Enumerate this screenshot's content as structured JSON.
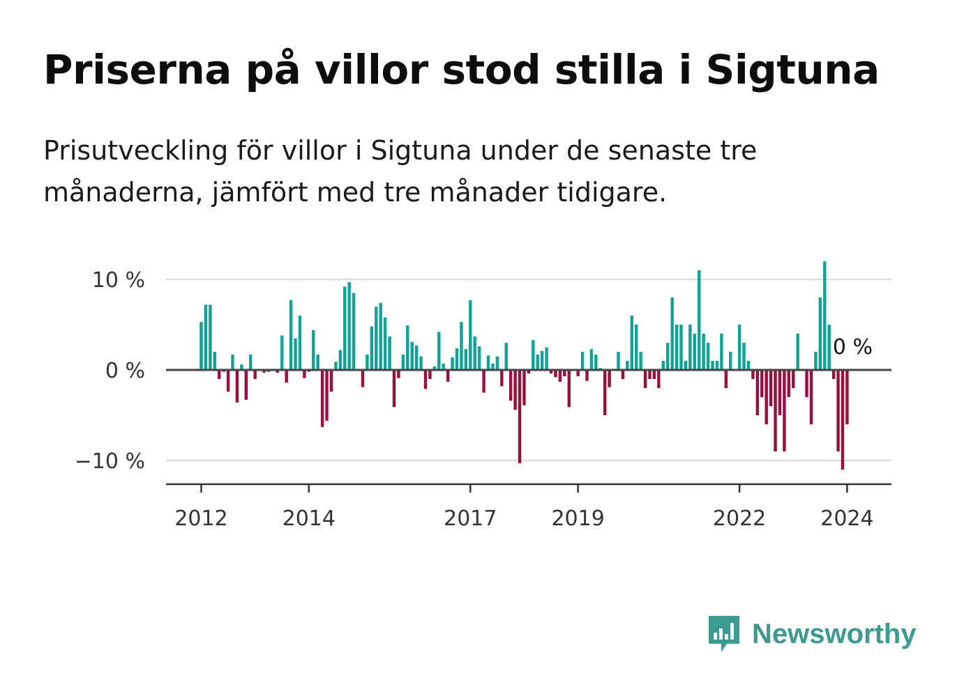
{
  "title": "Priserna på villor stod stilla i Sigtuna",
  "subtitle": "Prisutveckling för villor i Sigtuna under de senaste tre månaderna, jämfört med tre månader tidigare.",
  "brand": {
    "name": "Newsworthy",
    "icon": "newsworthy-chart-bubble-icon",
    "color": "#3d9a90"
  },
  "chart_data": {
    "type": "bar",
    "x_start": "2012-01",
    "x_step": "1 month",
    "ylim": [
      -12.5,
      12.5
    ],
    "yticks": [
      10,
      0,
      -10
    ],
    "ytick_labels": [
      "10 %",
      "0 %",
      "−10 %"
    ],
    "xticks": [
      {
        "label": "2012",
        "date": "2012-01"
      },
      {
        "label": "2014",
        "date": "2014-01"
      },
      {
        "label": "2017",
        "date": "2017-01"
      },
      {
        "label": "2019",
        "date": "2019-01"
      },
      {
        "label": "2022",
        "date": "2022-01"
      },
      {
        "label": "2024",
        "date": "2024-01"
      }
    ],
    "grid": true,
    "colors": {
      "positive": "#0fa398",
      "negative": "#990f3d"
    },
    "last_label": "0 %",
    "values": [
      5.3,
      7.2,
      7.2,
      2.0,
      -1.0,
      -0.2,
      -2.4,
      1.7,
      -3.6,
      0.6,
      -3.3,
      1.7,
      -1.0,
      -0.1,
      -0.3,
      -0.2,
      -0.1,
      -0.3,
      3.8,
      -1.4,
      7.7,
      3.5,
      6.0,
      -0.9,
      -0.2,
      4.4,
      1.7,
      -6.3,
      -5.6,
      -2.4,
      0.9,
      2.2,
      9.2,
      9.7,
      8.5,
      -0.1,
      -1.9,
      1.7,
      4.8,
      7.0,
      7.4,
      5.8,
      3.7,
      -4.1,
      -0.9,
      1.7,
      4.9,
      3.1,
      2.7,
      1.5,
      -2.1,
      -1.0,
      0.4,
      4.2,
      0.7,
      -1.3,
      1.4,
      2.4,
      5.3,
      2.3,
      7.7,
      3.7,
      2.6,
      -2.5,
      1.6,
      0.7,
      1.5,
      -1.8,
      3.0,
      -3.4,
      -4.4,
      -10.3,
      -3.9,
      -0.4,
      3.3,
      1.7,
      2.1,
      2.5,
      -0.4,
      -0.8,
      -1.3,
      -0.7,
      -4.1,
      -0.1,
      -0.7,
      2.0,
      -1.2,
      2.3,
      1.7,
      0.2,
      -5.0,
      -1.9,
      0.1,
      2.0,
      -1.0,
      1.0,
      6.0,
      5.0,
      2.0,
      -2.0,
      -1.0,
      -1.0,
      -2.0,
      1.0,
      3.0,
      8.0,
      5.0,
      5.0,
      1.0,
      5.0,
      4.0,
      11.0,
      4.0,
      3.0,
      1.0,
      1.0,
      4.0,
      -2.0,
      2.0,
      0.1,
      5.0,
      3.0,
      1.0,
      -1.0,
      -5.0,
      -3.0,
      -6.0,
      -4.0,
      -9.0,
      -5.0,
      -9.0,
      -3.0,
      -2.0,
      4.0,
      0.1,
      -3.0,
      -6.0,
      2.0,
      8.0,
      12.0,
      5.0,
      -1.0,
      -9.0,
      -11.0,
      -6.0,
      0.0
    ]
  }
}
